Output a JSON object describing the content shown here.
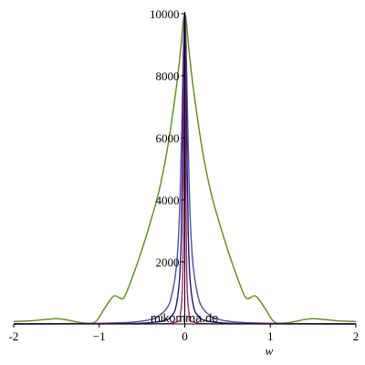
{
  "watermark": "mikomma.de",
  "chart_data": {
    "type": "line",
    "title": "",
    "xlabel": "w",
    "ylabel": "",
    "xlim": [
      -2,
      2
    ],
    "ylim": [
      0,
      10000
    ],
    "x_ticks": [
      -2,
      -1,
      0,
      1,
      2
    ],
    "x_tick_labels": [
      "-2",
      "−1",
      "0",
      "1",
      "2"
    ],
    "y_ticks": [
      2000,
      4000,
      6000,
      8000,
      10000
    ],
    "y_tick_labels": [
      "2000",
      "4000",
      "6000",
      "8000",
      "10000"
    ],
    "grid": false,
    "legend": "none",
    "series": [
      {
        "color": "#5f8a1e",
        "x": [
          -2.0,
          -1.8,
          -1.6,
          -1.5,
          -1.4,
          -1.2,
          -1.05,
          -0.95,
          -0.85,
          -0.8,
          -0.75,
          -0.7,
          -0.6,
          -0.5,
          -0.4,
          -0.3,
          -0.2,
          -0.1,
          -0.05,
          0.0,
          0.05,
          0.1,
          0.2,
          0.3,
          0.4,
          0.5,
          0.6,
          0.7,
          0.75,
          0.8,
          0.85,
          0.95,
          1.05,
          1.2,
          1.4,
          1.5,
          1.6,
          1.8,
          2.0
        ],
        "y": [
          80,
          100,
          150,
          170,
          140,
          40,
          60,
          450,
          850,
          900,
          820,
          900,
          1600,
          2400,
          3300,
          4300,
          5700,
          7600,
          8800,
          10000,
          8800,
          7600,
          5700,
          4300,
          3300,
          2400,
          1600,
          900,
          820,
          900,
          850,
          450,
          60,
          40,
          140,
          170,
          150,
          100,
          80
        ]
      },
      {
        "color": "#4e4e9c",
        "x": [
          -2.0,
          -1.5,
          -1.0,
          -0.6,
          -0.4,
          -0.3,
          -0.2,
          -0.15,
          -0.1,
          -0.07,
          -0.05,
          -0.03,
          -0.015,
          0.0,
          0.015,
          0.03,
          0.05,
          0.07,
          0.1,
          0.15,
          0.2,
          0.3,
          0.4,
          0.6,
          1.0,
          1.5,
          2.0
        ],
        "y": [
          5,
          10,
          20,
          60,
          140,
          260,
          550,
          950,
          1800,
          3000,
          4600,
          7000,
          9000,
          10000,
          9000,
          7000,
          4600,
          3000,
          1800,
          950,
          550,
          260,
          140,
          60,
          20,
          10,
          5
        ]
      },
      {
        "color": "#1a1a7a",
        "x": [
          -2.0,
          -1.0,
          -0.5,
          -0.25,
          -0.15,
          -0.1,
          -0.06,
          -0.04,
          -0.02,
          -0.01,
          0.0,
          0.01,
          0.02,
          0.04,
          0.06,
          0.1,
          0.15,
          0.25,
          0.5,
          1.0,
          2.0
        ],
        "y": [
          0,
          5,
          25,
          100,
          280,
          600,
          1500,
          3000,
          6500,
          8800,
          10000,
          8800,
          6500,
          3000,
          1500,
          600,
          280,
          100,
          25,
          5,
          0
        ]
      },
      {
        "color": "#a0266a",
        "x": [
          -2.0,
          -0.5,
          -0.1,
          -0.05,
          -0.03,
          -0.02,
          -0.01,
          -0.005,
          0.0,
          0.005,
          0.01,
          0.02,
          0.03,
          0.05,
          0.1,
          0.5,
          2.0
        ],
        "y": [
          0,
          2,
          60,
          350,
          1000,
          2200,
          5500,
          8200,
          10000,
          8200,
          5500,
          2200,
          1000,
          350,
          60,
          2,
          0
        ]
      }
    ]
  }
}
